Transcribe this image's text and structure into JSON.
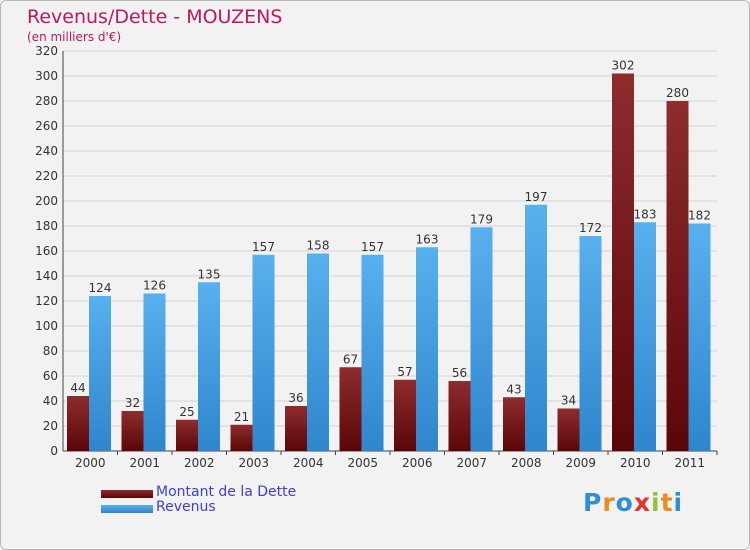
{
  "header": {
    "title": "Revenus/Dette - MOUZENS",
    "subtitle": "(en milliers d'€)"
  },
  "legend": {
    "items": [
      {
        "label": "Montant de la Dette",
        "color": "#6b0f12"
      },
      {
        "label": "Revenus",
        "color": "#4a9ee0"
      }
    ]
  },
  "logo": {
    "text": "Proxiti",
    "letters": [
      {
        "ch": "P",
        "color": "#2e8fd8"
      },
      {
        "ch": "r",
        "color": "#f08a1c"
      },
      {
        "ch": "o",
        "color": "#2e8fd8"
      },
      {
        "ch": "x",
        "color": "#e8312a"
      },
      {
        "ch": "i",
        "color": "#8cc63f"
      },
      {
        "ch": "t",
        "color": "#f08a1c"
      },
      {
        "ch": "i",
        "color": "#2e8fd8"
      }
    ]
  },
  "chart_data": {
    "type": "bar",
    "title": "Revenus/Dette - MOUZENS",
    "subtitle": "(en milliers d'€)",
    "categories": [
      "2000",
      "2001",
      "2002",
      "2003",
      "2004",
      "2005",
      "2006",
      "2007",
      "2008",
      "2009",
      "2010",
      "2011"
    ],
    "series": [
      {
        "name": "Montant de la Dette",
        "color": "#7a1e20",
        "values": [
          44,
          32,
          25,
          21,
          36,
          67,
          57,
          56,
          43,
          34,
          302,
          280
        ]
      },
      {
        "name": "Revenus",
        "color": "#4ea3e6",
        "values": [
          124,
          126,
          135,
          157,
          158,
          157,
          163,
          179,
          197,
          172,
          183,
          182
        ]
      }
    ],
    "ylim": [
      0,
      320
    ],
    "yticks": [
      0,
      20,
      40,
      60,
      80,
      100,
      120,
      140,
      160,
      180,
      200,
      220,
      240,
      260,
      280,
      300,
      320
    ],
    "grid": true,
    "legend_position": "bottom-left"
  }
}
